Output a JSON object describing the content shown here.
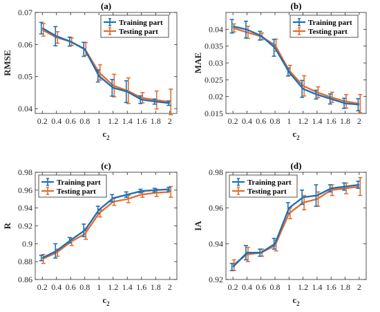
{
  "chart_data": [
    {
      "type": "line",
      "panel_label": "(a)",
      "ylabel": "RMSE",
      "xlabel_main": "c",
      "xlabel_sub": "2",
      "x": [
        0.2,
        0.4,
        0.6,
        0.8,
        1,
        1.2,
        1.4,
        1.6,
        1.8,
        2
      ],
      "xticks": [
        0.2,
        0.4,
        0.6,
        0.8,
        1,
        1.2,
        1.4,
        1.6,
        1.8,
        2
      ],
      "xlim": [
        0.1,
        2.1
      ],
      "ylim": [
        0.0385,
        0.07
      ],
      "yticks": [
        0.04,
        0.05,
        0.06,
        0.07
      ],
      "legend_loc": "top-right",
      "series": [
        {
          "name": "Training part",
          "color": "#1f6fb5",
          "values": [
            0.0651,
            0.0626,
            0.0609,
            0.0585,
            0.0502,
            0.0465,
            0.0453,
            0.0428,
            0.0422,
            0.0417
          ],
          "errors": [
            0.0018,
            0.003,
            0.0014,
            0.0022,
            0.0019,
            0.0026,
            0.0034,
            0.0012,
            0.0008,
            0.0007
          ]
        },
        {
          "name": "Testing part",
          "color": "#e36c2d",
          "values": [
            0.0646,
            0.0622,
            0.0609,
            0.0586,
            0.0513,
            0.0472,
            0.0456,
            0.0434,
            0.0427,
            0.0421
          ],
          "errors": [
            0.002,
            0.0018,
            0.0012,
            0.002,
            0.0024,
            0.0035,
            0.004,
            0.0016,
            0.0028,
            0.004
          ]
        }
      ]
    },
    {
      "type": "line",
      "panel_label": "(b)",
      "ylabel": "MAE",
      "xlabel_main": "c",
      "xlabel_sub": "2",
      "x": [
        0.2,
        0.4,
        0.6,
        0.8,
        1,
        1.2,
        1.4,
        1.6,
        1.8,
        2
      ],
      "xticks": [
        0.2,
        0.4,
        0.6,
        0.8,
        1,
        1.2,
        1.4,
        1.6,
        1.8,
        2
      ],
      "xlim": [
        0.1,
        2.1
      ],
      "ylim": [
        0.015,
        0.045
      ],
      "yticks": [
        0.015,
        0.02,
        0.025,
        0.03,
        0.035,
        0.04
      ],
      "legend_loc": "top-right",
      "series": [
        {
          "name": "Training part",
          "color": "#1f6fb5",
          "values": [
            0.0409,
            0.0399,
            0.0381,
            0.0345,
            0.0273,
            0.0223,
            0.0206,
            0.0193,
            0.018,
            0.0176
          ],
          "errors": [
            0.002,
            0.0025,
            0.0013,
            0.0025,
            0.0012,
            0.0025,
            0.0013,
            0.0015,
            0.0015,
            0.0018
          ]
        },
        {
          "name": "Testing part",
          "color": "#e36c2d",
          "values": [
            0.0404,
            0.0391,
            0.0379,
            0.0353,
            0.0278,
            0.0232,
            0.0213,
            0.0198,
            0.0186,
            0.0179
          ],
          "errors": [
            0.0012,
            0.0018,
            0.001,
            0.0018,
            0.0015,
            0.003,
            0.0016,
            0.0015,
            0.002,
            0.0027
          ]
        }
      ]
    },
    {
      "type": "line",
      "panel_label": "(c)",
      "ylabel": "R",
      "xlabel_main": "c",
      "xlabel_sub": "2",
      "x": [
        0.2,
        0.4,
        0.6,
        0.8,
        1,
        1.2,
        1.4,
        1.6,
        1.8,
        2
      ],
      "xticks": [
        0.2,
        0.4,
        0.6,
        0.8,
        1,
        1.2,
        1.4,
        1.6,
        1.8,
        2
      ],
      "xlim": [
        0.1,
        2.1
      ],
      "ylim": [
        0.86,
        0.98
      ],
      "yticks": [
        0.86,
        0.88,
        0.9,
        0.92,
        0.94,
        0.96,
        0.98
      ],
      "legend_loc": "top-left",
      "series": [
        {
          "name": "Training part",
          "color": "#1f6fb5",
          "values": [
            0.884,
            0.892,
            0.904,
            0.915,
            0.938,
            0.951,
            0.955,
            0.959,
            0.96,
            0.961
          ],
          "errors": [
            0.003,
            0.008,
            0.003,
            0.007,
            0.004,
            0.004,
            0.003,
            0.002,
            0.002,
            0.002
          ]
        },
        {
          "name": "Testing part",
          "color": "#e36c2d",
          "values": [
            0.883,
            0.89,
            0.902,
            0.911,
            0.934,
            0.947,
            0.95,
            0.955,
            0.957,
            0.958
          ],
          "errors": [
            0.005,
            0.004,
            0.004,
            0.006,
            0.004,
            0.004,
            0.004,
            0.003,
            0.004,
            0.006
          ]
        }
      ]
    },
    {
      "type": "line",
      "panel_label": "(d)",
      "ylabel": "IA",
      "xlabel_main": "c",
      "xlabel_sub": "2",
      "x": [
        0.2,
        0.4,
        0.6,
        0.8,
        1,
        1.2,
        1.4,
        1.6,
        1.8,
        2
      ],
      "xticks": [
        0.2,
        0.4,
        0.6,
        0.8,
        1,
        1.2,
        1.4,
        1.6,
        1.8,
        2
      ],
      "xlim": [
        0.1,
        2.1
      ],
      "ylim": [
        0.92,
        0.98
      ],
      "yticks": [
        0.92,
        0.94,
        0.96,
        0.98
      ],
      "legend_loc": "top-left",
      "series": [
        {
          "name": "Training part",
          "color": "#1f6fb5",
          "values": [
            0.927,
            0.935,
            0.935,
            0.94,
            0.96,
            0.966,
            0.967,
            0.971,
            0.972,
            0.973
          ],
          "errors": [
            0.002,
            0.004,
            0.002,
            0.003,
            0.003,
            0.004,
            0.006,
            0.002,
            0.002,
            0.002
          ]
        },
        {
          "name": "Testing part",
          "color": "#e36c2d",
          "values": [
            0.928,
            0.934,
            0.935,
            0.939,
            0.957,
            0.963,
            0.965,
            0.97,
            0.971,
            0.972
          ],
          "errors": [
            0.003,
            0.004,
            0.002,
            0.003,
            0.003,
            0.004,
            0.004,
            0.003,
            0.003,
            0.005
          ]
        }
      ]
    }
  ]
}
